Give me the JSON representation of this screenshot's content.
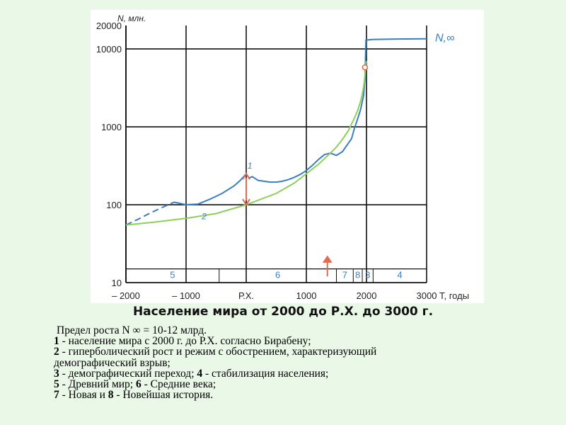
{
  "chart_data": {
    "type": "line",
    "title": "Население мира от 2000 до Р.Х. до 3000 г.",
    "ylabel": "N, млн.",
    "xlabel": "T, годы",
    "y_scale": "log",
    "ylim": [
      10,
      20000
    ],
    "xlim": [
      -2000,
      3000
    ],
    "x_ticks": [
      {
        "value": -2000,
        "label": "– 2000"
      },
      {
        "value": -1000,
        "label": "– 1000"
      },
      {
        "value": 0,
        "label": "Р.Х."
      },
      {
        "value": 1000,
        "label": "1000"
      },
      {
        "value": 2000,
        "label": "2000"
      },
      {
        "value": 3000,
        "label": "3000"
      }
    ],
    "y_ticks": [
      {
        "value": 10,
        "label": "10"
      },
      {
        "value": 100,
        "label": "100"
      },
      {
        "value": 1000,
        "label": "1000"
      },
      {
        "value": 10000,
        "label": "10000"
      },
      {
        "value": 20000,
        "label": "20000"
      }
    ],
    "grid": true,
    "series": [
      {
        "name": "1",
        "color": "#3a7fc1",
        "dashed_x": [
          -2000,
          -1200
        ],
        "x": [
          -2000,
          -1800,
          -1600,
          -1400,
          -1200,
          -1000,
          -800,
          -600,
          -400,
          -200,
          -100,
          0,
          50,
          100,
          200,
          300,
          400,
          500,
          600,
          700,
          800,
          900,
          1000,
          1100,
          1200,
          1300,
          1400,
          1500,
          1600,
          1700,
          1750,
          1800,
          1850,
          1900,
          1950,
          1970,
          1975,
          1990,
          2100,
          2500,
          3000
        ],
        "y": [
          55,
          65,
          78,
          92,
          108,
          100,
          102,
          118,
          140,
          175,
          205,
          250,
          220,
          230,
          205,
          200,
          195,
          195,
          200,
          210,
          225,
          245,
          275,
          320,
          380,
          440,
          460,
          430,
          480,
          620,
          700,
          960,
          1250,
          1650,
          2500,
          3700,
          4100,
          13000,
          13200,
          13400,
          13500
        ]
      },
      {
        "name": "2",
        "color": "#8cd05a",
        "x": [
          -2000,
          -1500,
          -1000,
          -500,
          0,
          500,
          800,
          1000,
          1200,
          1400,
          1500,
          1600,
          1700,
          1800,
          1850,
          1900,
          1925,
          1950,
          1960,
          1970,
          1980,
          1990,
          1995
        ],
        "y": [
          55,
          60,
          67,
          77,
          100,
          140,
          190,
          250,
          330,
          460,
          550,
          690,
          900,
          1300,
          1600,
          2100,
          2500,
          3200,
          3600,
          4200,
          5000,
          6100,
          7000
        ]
      }
    ],
    "annotations": [
      {
        "label": "1",
        "x": 60,
        "y": 290
      },
      {
        "label": "2",
        "x": -700,
        "y": 65
      },
      {
        "label": "N,∞",
        "x": 3130,
        "y": 12500
      }
    ],
    "markers": [
      {
        "type": "double-arrow",
        "x": 0,
        "y_from": 100,
        "y_to": 250,
        "color": "#e36b4f"
      },
      {
        "type": "circle",
        "x": 1975,
        "y": 5800,
        "color": "#e36b4f"
      },
      {
        "type": "arrow-up",
        "x": 1350,
        "y_from": 12,
        "y_to": 22,
        "color": "#e36b4f"
      }
    ],
    "periods": [
      {
        "label": "5",
        "from": -2000,
        "to": -450
      },
      {
        "label": "6",
        "from": -450,
        "to": 1500
      },
      {
        "label": "7",
        "from": 1500,
        "to": 1780
      },
      {
        "label": "8",
        "from": 1780,
        "to": 1930
      },
      {
        "label": "3",
        "from": 1930,
        "to": 2110
      },
      {
        "label": "4",
        "from": 2110,
        "to": 3000
      }
    ]
  },
  "caption": {
    "l1": "Предел роста N ∞ = 10-12 млрд.",
    "n1": "1",
    "t1": " - население мира с 2000 г. до Р.Х. согласно Бирабену;",
    "n2": "2",
    "t2": " - гиперболический рост и режим с обострением, характеризующий",
    "t2b": "демографический взрыв;",
    "n3": "3",
    "t3": " - демографический переход; ",
    "n4": "4",
    "t4": " - стабилизация населения;",
    "n5": "5",
    "t5": " - Древний мир; ",
    "n6": "6",
    "t6": " - Средние века;",
    "n7": "7",
    "t7": " - Новая и ",
    "n8": "8",
    "t8": " - Новейшая история."
  }
}
